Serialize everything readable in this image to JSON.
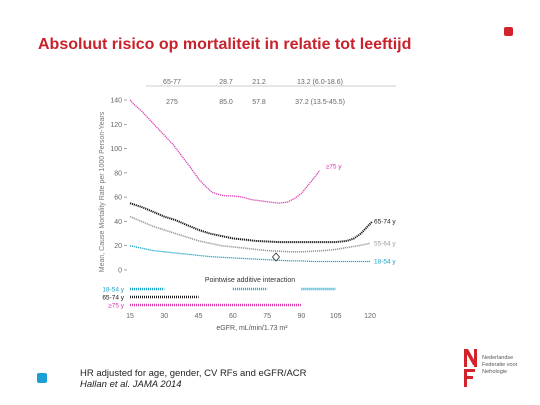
{
  "slide": {
    "title": "Absoluut risico op mortaliteit in relatie tot leeftijd",
    "caption_line1": "HR adjusted for age, gender, CV RFs and eGFR/ACR",
    "caption_line2": "Hallan et al. JAMA 2014"
  },
  "logo": {
    "letters": "NF",
    "lines": [
      "Nederlandse",
      "Federatie voor",
      "Nefrologie"
    ]
  },
  "colors": {
    "accent": "#c8232c",
    "age75": "#d93ab0",
    "age6574": "#1a1a1a",
    "age5564": "#9a9a9a",
    "age1854": "#1aa3c8"
  },
  "chart_data": {
    "type": "line",
    "xlabel": "eGFR, mL/min/1.73 m²",
    "ylabel": "Mean, Cause Mortality Rate per 1000 Person-Years",
    "x_ticks": [
      15,
      30,
      45,
      60,
      75,
      90,
      105,
      120
    ],
    "y_ticks": [
      0,
      20,
      40,
      60,
      80,
      100,
      120,
      140
    ],
    "xlim": [
      15,
      120
    ],
    "ylim": [
      0,
      140
    ],
    "header_top": [
      "65-77",
      "28.7",
      "21.2",
      "13.2 (6.0-18.6)"
    ],
    "header_bottom": [
      "275",
      "85.0",
      "57.8",
      "37.2 (13.5-45.5)"
    ],
    "annotation": "Pointwise additive interaction",
    "series": [
      {
        "name": "≥75 y",
        "x": [
          15,
          17,
          20,
          23,
          26,
          30,
          34,
          38,
          42,
          45,
          48,
          51,
          54,
          57,
          60,
          64,
          68,
          72,
          76,
          80,
          84,
          87,
          90,
          93,
          96,
          98
        ],
        "values": [
          140,
          136,
          131,
          125,
          119,
          111,
          103,
          93,
          83,
          75,
          69,
          64,
          62,
          61,
          61,
          60,
          58,
          57,
          56,
          55,
          56,
          59,
          63,
          70,
          77,
          82
        ]
      },
      {
        "name": "65-74 y",
        "x": [
          15,
          20,
          25,
          30,
          35,
          40,
          45,
          50,
          55,
          60,
          65,
          70,
          75,
          80,
          85,
          90,
          95,
          100,
          105,
          110,
          113,
          116,
          119,
          121
        ],
        "values": [
          55,
          52,
          48,
          44,
          41,
          37,
          33,
          30,
          28,
          26,
          25,
          24,
          23.5,
          23,
          23,
          23,
          23,
          23,
          23,
          24,
          26,
          30,
          36,
          40
        ]
      },
      {
        "name": "55-64 y",
        "x": [
          15,
          20,
          25,
          30,
          35,
          40,
          45,
          50,
          55,
          60,
          65,
          70,
          75,
          80,
          85,
          90,
          95,
          100,
          105,
          110,
          115,
          120
        ],
        "values": [
          44,
          40,
          36,
          33,
          30,
          27,
          24,
          22,
          20,
          19,
          18,
          17,
          16,
          15.5,
          15,
          15,
          15.5,
          16,
          17,
          18.5,
          20,
          22
        ]
      },
      {
        "name": "18-54 y",
        "x": [
          15,
          20,
          25,
          30,
          35,
          40,
          45,
          50,
          55,
          60,
          65,
          70,
          75,
          80,
          85,
          90,
          95,
          100,
          105,
          110,
          115,
          120
        ],
        "values": [
          20,
          18,
          16,
          15,
          14,
          13,
          12,
          11,
          10.5,
          10,
          9.5,
          9,
          8.5,
          8,
          7.5,
          7.5,
          7,
          7,
          7,
          7,
          7,
          7
        ]
      }
    ],
    "interaction_rows": [
      {
        "label": "18-54 y",
        "color": "#1aa3c8",
        "segments": [
          [
            15,
            30
          ],
          [
            60,
            75
          ],
          [
            90,
            105
          ]
        ]
      },
      {
        "label": "65-74 y",
        "color": "#1a1a1a",
        "segments": [
          [
            15,
            45
          ]
        ]
      },
      {
        "label": "≥75 y",
        "color": "#d93ab0",
        "segments": [
          [
            15,
            90
          ]
        ]
      }
    ]
  }
}
